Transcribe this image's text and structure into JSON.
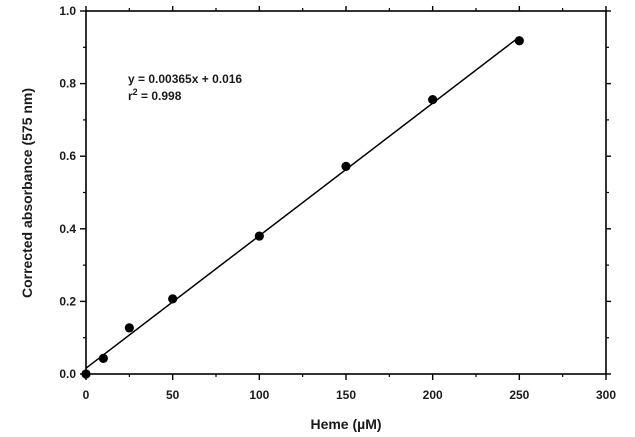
{
  "chart_data": {
    "type": "scatter",
    "xlabel": "Heme (µM)",
    "ylabel": "Corrected absorbance (575 nm)",
    "xlim": [
      0,
      300
    ],
    "ylim": [
      0.0,
      1.0
    ],
    "x_ticks": [
      0,
      50,
      100,
      150,
      200,
      250,
      300
    ],
    "x_tick_labels": [
      "0",
      "50",
      "100",
      "150",
      "200",
      "250",
      "300"
    ],
    "y_ticks": [
      0.0,
      0.2,
      0.4,
      0.6,
      0.8,
      1.0
    ],
    "y_tick_labels": [
      "0.0",
      "0.2",
      "0.4",
      "0.6",
      "0.8",
      "1.0"
    ],
    "grid": false,
    "series": [
      {
        "x": [
          0,
          10,
          25,
          50,
          100,
          150,
          200,
          250
        ],
        "y": [
          0.0,
          0.043,
          0.127,
          0.207,
          0.38,
          0.572,
          0.756,
          0.918
        ],
        "marker": "circle",
        "color": "#000000"
      }
    ],
    "fit_line": {
      "slope": 0.00365,
      "intercept": 0.016,
      "x_range": [
        0,
        250
      ],
      "color": "#000000"
    },
    "annotations": {
      "equation": "y = 0.00365x + 0.016",
      "r2_base": "r",
      "r2_sup": "2",
      "r2_value": " = 0.998"
    }
  }
}
